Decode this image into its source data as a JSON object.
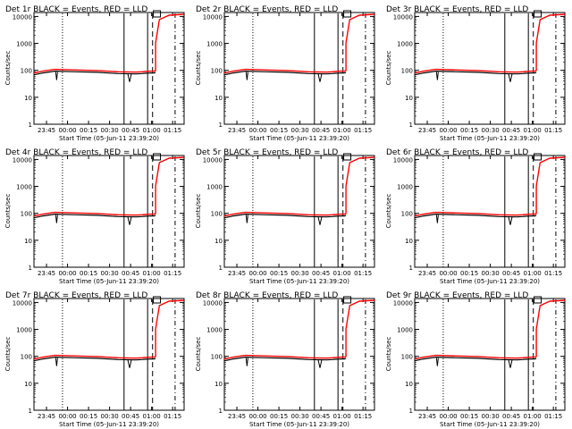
{
  "chart_data": [
    {
      "type": "line",
      "title": "Det 1r BLACK = Events, RED = LLD",
      "ylabel": "Counts/sec",
      "xlabel": "Start Time (05-Jun-11 23:39:20)",
      "x_ticks": [
        "23:45",
        "00:00",
        "00:15",
        "00:30",
        "00:45",
        "01:00",
        "01:15"
      ],
      "y_ticks": [
        "1",
        "10",
        "100",
        "1000",
        "10000"
      ],
      "yscale": "log",
      "ylim": [
        1,
        12000
      ],
      "series": [
        {
          "name": "Events",
          "color": "#000000"
        },
        {
          "name": "LLD",
          "color": "#ff0000"
        }
      ]
    },
    {
      "type": "line",
      "title": "Det 2r BLACK = Events, RED = LLD",
      "ylabel": "Counts/sec",
      "xlabel": "Start Time (05-Jun-11 23:39:20)",
      "x_ticks": [
        "23:45",
        "00:00",
        "00:15",
        "00:30",
        "00:45",
        "01:00",
        "01:15"
      ],
      "y_ticks": [
        "1",
        "10",
        "100",
        "1000",
        "10000"
      ],
      "yscale": "log",
      "ylim": [
        1,
        12000
      ],
      "series": [
        {
          "name": "Events",
          "color": "#000000"
        },
        {
          "name": "LLD",
          "color": "#ff0000"
        }
      ]
    },
    {
      "type": "line",
      "title": "Det 3r BLACK = Events, RED = LLD",
      "ylabel": "Counts/sec",
      "xlabel": "Start Time (05-Jun-11 23:39:20)",
      "x_ticks": [
        "23:45",
        "00:00",
        "00:15",
        "00:30",
        "00:45",
        "01:00",
        "01:15"
      ],
      "y_ticks": [
        "1",
        "10",
        "100",
        "1000",
        "10000"
      ],
      "yscale": "log",
      "ylim": [
        1,
        12000
      ],
      "series": [
        {
          "name": "Events",
          "color": "#000000"
        },
        {
          "name": "LLD",
          "color": "#ff0000"
        }
      ]
    },
    {
      "type": "line",
      "title": "Det 4r BLACK = Events, RED = LLD",
      "ylabel": "Counts/sec",
      "xlabel": "Start Time (05-Jun-11 23:39:20)",
      "x_ticks": [
        "23:45",
        "00:00",
        "00:15",
        "00:30",
        "00:45",
        "01:00",
        "01:15"
      ],
      "y_ticks": [
        "1",
        "10",
        "100",
        "1000",
        "10000"
      ],
      "yscale": "log",
      "ylim": [
        1,
        12000
      ],
      "series": [
        {
          "name": "Events",
          "color": "#000000"
        },
        {
          "name": "LLD",
          "color": "#ff0000"
        }
      ]
    },
    {
      "type": "line",
      "title": "Det 5r BLACK = Events, RED = LLD",
      "ylabel": "Counts/sec",
      "xlabel": "Start Time (05-Jun-11 23:39:20)",
      "x_ticks": [
        "23:45",
        "00:00",
        "00:15",
        "00:30",
        "00:45",
        "01:00",
        "01:15"
      ],
      "y_ticks": [
        "1",
        "10",
        "100",
        "1000",
        "10000"
      ],
      "yscale": "log",
      "ylim": [
        1,
        12000
      ],
      "series": [
        {
          "name": "Events",
          "color": "#000000"
        },
        {
          "name": "LLD",
          "color": "#ff0000"
        }
      ]
    },
    {
      "type": "line",
      "title": "Det 6r BLACK = Events, RED = LLD",
      "ylabel": "Counts/sec",
      "xlabel": "Start Time (05-Jun-11 23:39:20)",
      "x_ticks": [
        "23:45",
        "00:00",
        "00:15",
        "00:30",
        "00:45",
        "01:00",
        "01:15"
      ],
      "y_ticks": [
        "1",
        "10",
        "100",
        "1000",
        "10000"
      ],
      "yscale": "log",
      "ylim": [
        1,
        12000
      ],
      "series": [
        {
          "name": "Events",
          "color": "#000000"
        },
        {
          "name": "LLD",
          "color": "#ff0000"
        }
      ]
    },
    {
      "type": "line",
      "title": "Det 7r BLACK = Events, RED = LLD",
      "ylabel": "Counts/sec",
      "xlabel": "Start Time (05-Jun-11 23:39:20)",
      "x_ticks": [
        "23:45",
        "00:00",
        "00:15",
        "00:30",
        "00:45",
        "01:00",
        "01:15"
      ],
      "y_ticks": [
        "1",
        "10",
        "100",
        "1000",
        "10000"
      ],
      "yscale": "log",
      "ylim": [
        1,
        12000
      ],
      "series": [
        {
          "name": "Events",
          "color": "#000000"
        },
        {
          "name": "LLD",
          "color": "#ff0000"
        }
      ]
    },
    {
      "type": "line",
      "title": "Det 8r BLACK = Events, RED = LLD",
      "ylabel": "Counts/sec",
      "xlabel": "Start Time (05-Jun-11 23:39:20)",
      "x_ticks": [
        "23:45",
        "00:00",
        "00:15",
        "00:30",
        "00:45",
        "01:00",
        "01:15"
      ],
      "y_ticks": [
        "1",
        "10",
        "100",
        "1000",
        "10000"
      ],
      "yscale": "log",
      "ylim": [
        1,
        12000
      ],
      "series": [
        {
          "name": "Events",
          "color": "#000000"
        },
        {
          "name": "LLD",
          "color": "#ff0000"
        }
      ]
    },
    {
      "type": "line",
      "title": "Det 9r BLACK = Events, RED = LLD",
      "ylabel": "Counts/sec",
      "xlabel": "Start Time (05-Jun-11 23:39:20)",
      "x_ticks": [
        "23:45",
        "00:00",
        "00:15",
        "00:30",
        "00:45",
        "01:00",
        "01:15"
      ],
      "y_ticks": [
        "1",
        "10",
        "100",
        "1000",
        "10000"
      ],
      "yscale": "log",
      "ylim": [
        1,
        12000
      ],
      "series": [
        {
          "name": "Events",
          "color": "#000000"
        },
        {
          "name": "LLD",
          "color": "#ff0000"
        }
      ]
    }
  ]
}
